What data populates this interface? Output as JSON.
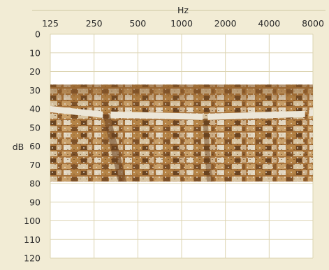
{
  "chart_data": {
    "type": "audiogram",
    "x_axis_title": "Hz",
    "y_axis_title": "dB",
    "x_ticks": [
      "125",
      "250",
      "500",
      "1000",
      "2000",
      "4000",
      "8000"
    ],
    "y_ticks": [
      "0",
      "10",
      "20",
      "30",
      "40",
      "50",
      "60",
      "70",
      "80",
      "90",
      "100",
      "110",
      "120"
    ],
    "xlim": [
      125,
      8000
    ],
    "ylim": [
      0,
      120
    ],
    "y_inverted": true,
    "x_scale": "log2",
    "grid": true,
    "band": {
      "label": "",
      "x_range": [
        125,
        8000
      ],
      "y_range": [
        27,
        79
      ],
      "depiction": "photograph of ancient amphitheater stone seating"
    }
  },
  "colors": {
    "background": "#f2ecd5",
    "plot_area": "#ffffff",
    "grid": "#dcd4b2",
    "axis_rule": "#cfc7a2",
    "stone_light": "#e8e2d6",
    "stone_mid": "#b07a3c",
    "stone_dark": "#5a3a1c"
  }
}
